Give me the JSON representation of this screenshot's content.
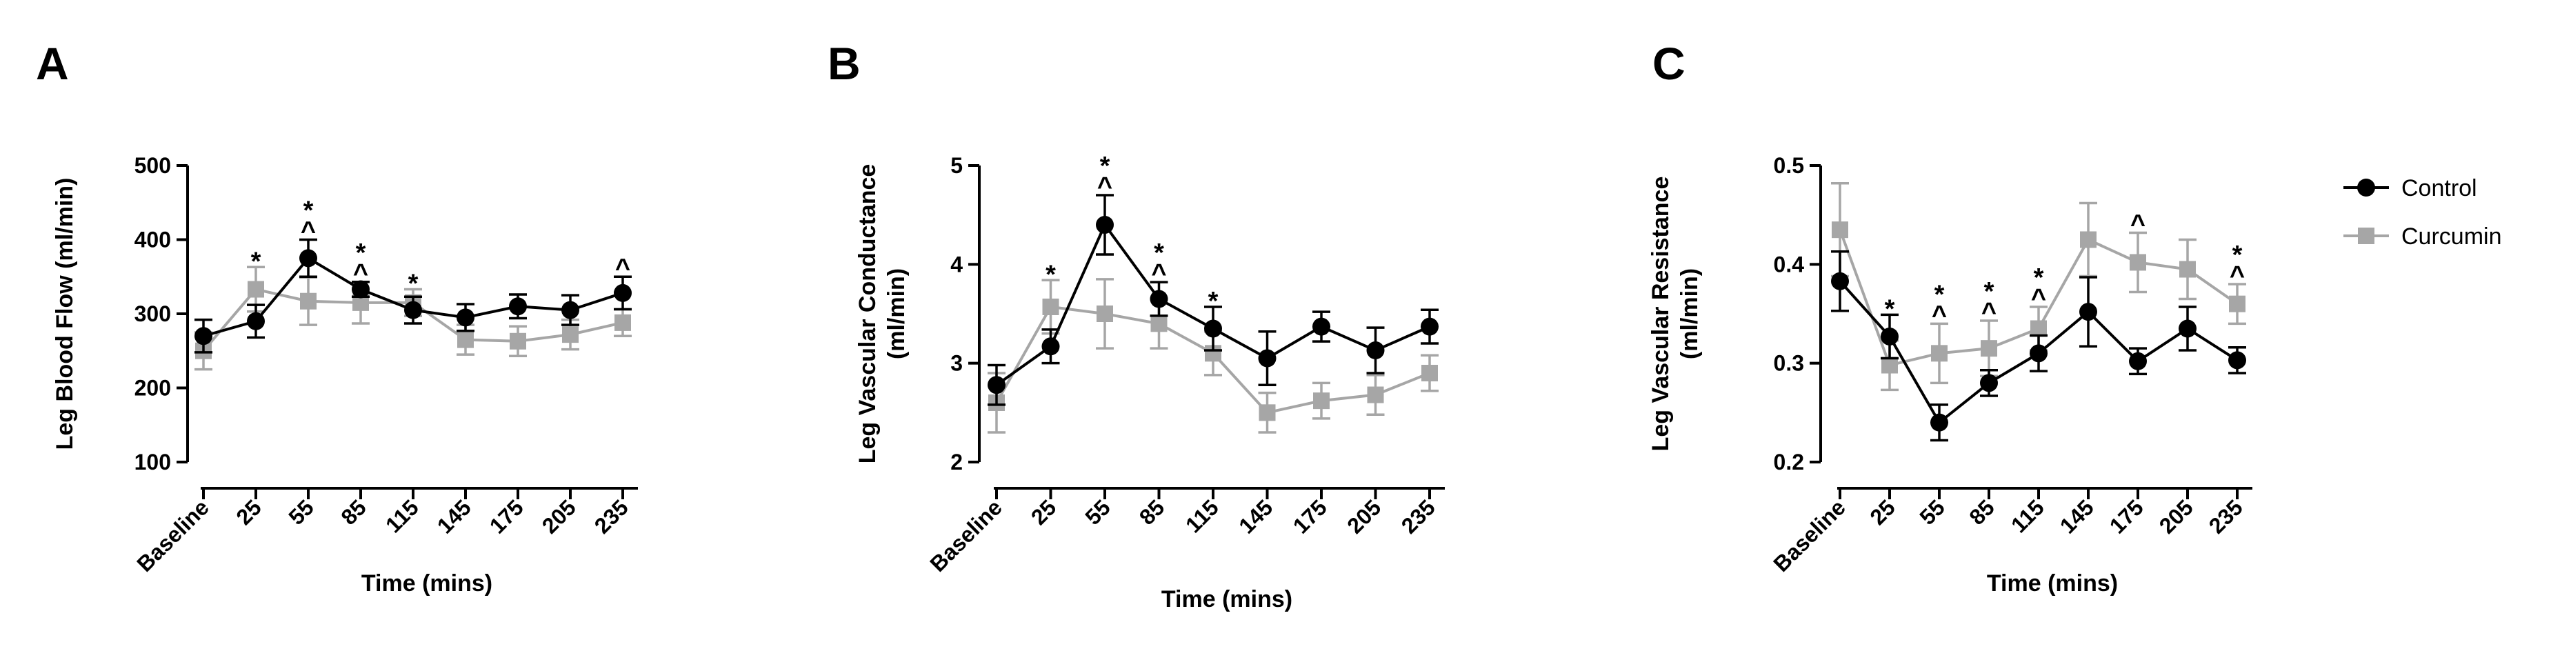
{
  "colors": {
    "control": "#000000",
    "curcumin": "#a6a6a6"
  },
  "legend": {
    "control": "Control",
    "curcumin": "Curcumin"
  },
  "chart_data": [
    {
      "type": "line",
      "panel": "A",
      "title": "",
      "xlabel": "Time (mins)",
      "ylabel": [
        "Leg Blood Flow (ml/min)"
      ],
      "categories": [
        "Baseline",
        "25",
        "55",
        "85",
        "115",
        "145",
        "175",
        "205",
        "235"
      ],
      "ylim": [
        100,
        500
      ],
      "yticks": [
        100,
        200,
        300,
        400,
        500
      ],
      "series": [
        {
          "name": "Control",
          "values": [
            270,
            290,
            375,
            333,
            305,
            295,
            310,
            305,
            328
          ],
          "errors": [
            22,
            22,
            25,
            10,
            18,
            18,
            16,
            20,
            22
          ]
        },
        {
          "name": "Curcumin",
          "values": [
            250,
            333,
            317,
            315,
            315,
            265,
            263,
            272,
            288
          ],
          "errors": [
            25,
            30,
            32,
            28,
            18,
            20,
            20,
            20,
            18
          ]
        }
      ],
      "annotations": [
        {
          "x": "25",
          "marks": [
            "*"
          ]
        },
        {
          "x": "55",
          "marks": [
            "*",
            "^"
          ]
        },
        {
          "x": "85",
          "marks": [
            "*",
            "^"
          ]
        },
        {
          "x": "115",
          "marks": [
            "*"
          ]
        },
        {
          "x": "235",
          "marks": [
            "^"
          ]
        }
      ]
    },
    {
      "type": "line",
      "panel": "B",
      "title": "",
      "xlabel": "Time (mins)",
      "ylabel": [
        "Leg Vascular Conductance",
        "(ml/min)"
      ],
      "categories": [
        "Baseline",
        "25",
        "55",
        "85",
        "115",
        "145",
        "175",
        "205",
        "235"
      ],
      "ylim": [
        2,
        5
      ],
      "yticks": [
        2,
        3,
        4,
        5
      ],
      "series": [
        {
          "name": "Control",
          "values": [
            2.78,
            3.17,
            4.4,
            3.65,
            3.35,
            3.05,
            3.37,
            3.13,
            3.37
          ],
          "errors": [
            0.2,
            0.17,
            0.3,
            0.17,
            0.22,
            0.27,
            0.15,
            0.23,
            0.17
          ]
        },
        {
          "name": "Curcumin",
          "values": [
            2.6,
            3.57,
            3.5,
            3.4,
            3.1,
            2.5,
            2.62,
            2.68,
            2.9
          ],
          "errors": [
            0.3,
            0.27,
            0.35,
            0.25,
            0.22,
            0.2,
            0.18,
            0.2,
            0.18
          ]
        }
      ],
      "annotations": [
        {
          "x": "25",
          "marks": [
            "*"
          ]
        },
        {
          "x": "55",
          "marks": [
            "*",
            "^"
          ]
        },
        {
          "x": "85",
          "marks": [
            "*",
            "^"
          ]
        },
        {
          "x": "115",
          "marks": [
            "*"
          ]
        }
      ]
    },
    {
      "type": "line",
      "panel": "C",
      "title": "",
      "xlabel": "Time (mins)",
      "ylabel": [
        "Leg Vascular Resistance",
        "(ml/min)"
      ],
      "categories": [
        "Baseline",
        "25",
        "55",
        "85",
        "115",
        "145",
        "175",
        "205",
        "235"
      ],
      "ylim": [
        0.2,
        0.5
      ],
      "yticks": [
        0.2,
        0.3,
        0.4,
        0.5
      ],
      "series": [
        {
          "name": "Control",
          "values": [
            0.383,
            0.327,
            0.24,
            0.28,
            0.31,
            0.352,
            0.302,
            0.335,
            0.303
          ],
          "errors": [
            0.03,
            0.022,
            0.018,
            0.013,
            0.018,
            0.035,
            0.013,
            0.022,
            0.013
          ]
        },
        {
          "name": "Curcumin",
          "values": [
            0.435,
            0.298,
            0.31,
            0.315,
            0.335,
            0.425,
            0.402,
            0.395,
            0.36
          ],
          "errors": [
            0.047,
            0.025,
            0.03,
            0.028,
            0.022,
            0.037,
            0.03,
            0.03,
            0.02
          ]
        }
      ],
      "annotations": [
        {
          "x": "25",
          "marks": [
            "*"
          ]
        },
        {
          "x": "55",
          "marks": [
            "*",
            "^"
          ]
        },
        {
          "x": "85",
          "marks": [
            "*",
            "^"
          ]
        },
        {
          "x": "115",
          "marks": [
            "*",
            "^"
          ]
        },
        {
          "x": "175",
          "marks": [
            "^"
          ]
        },
        {
          "x": "235",
          "marks": [
            "*",
            "^"
          ]
        }
      ]
    }
  ]
}
